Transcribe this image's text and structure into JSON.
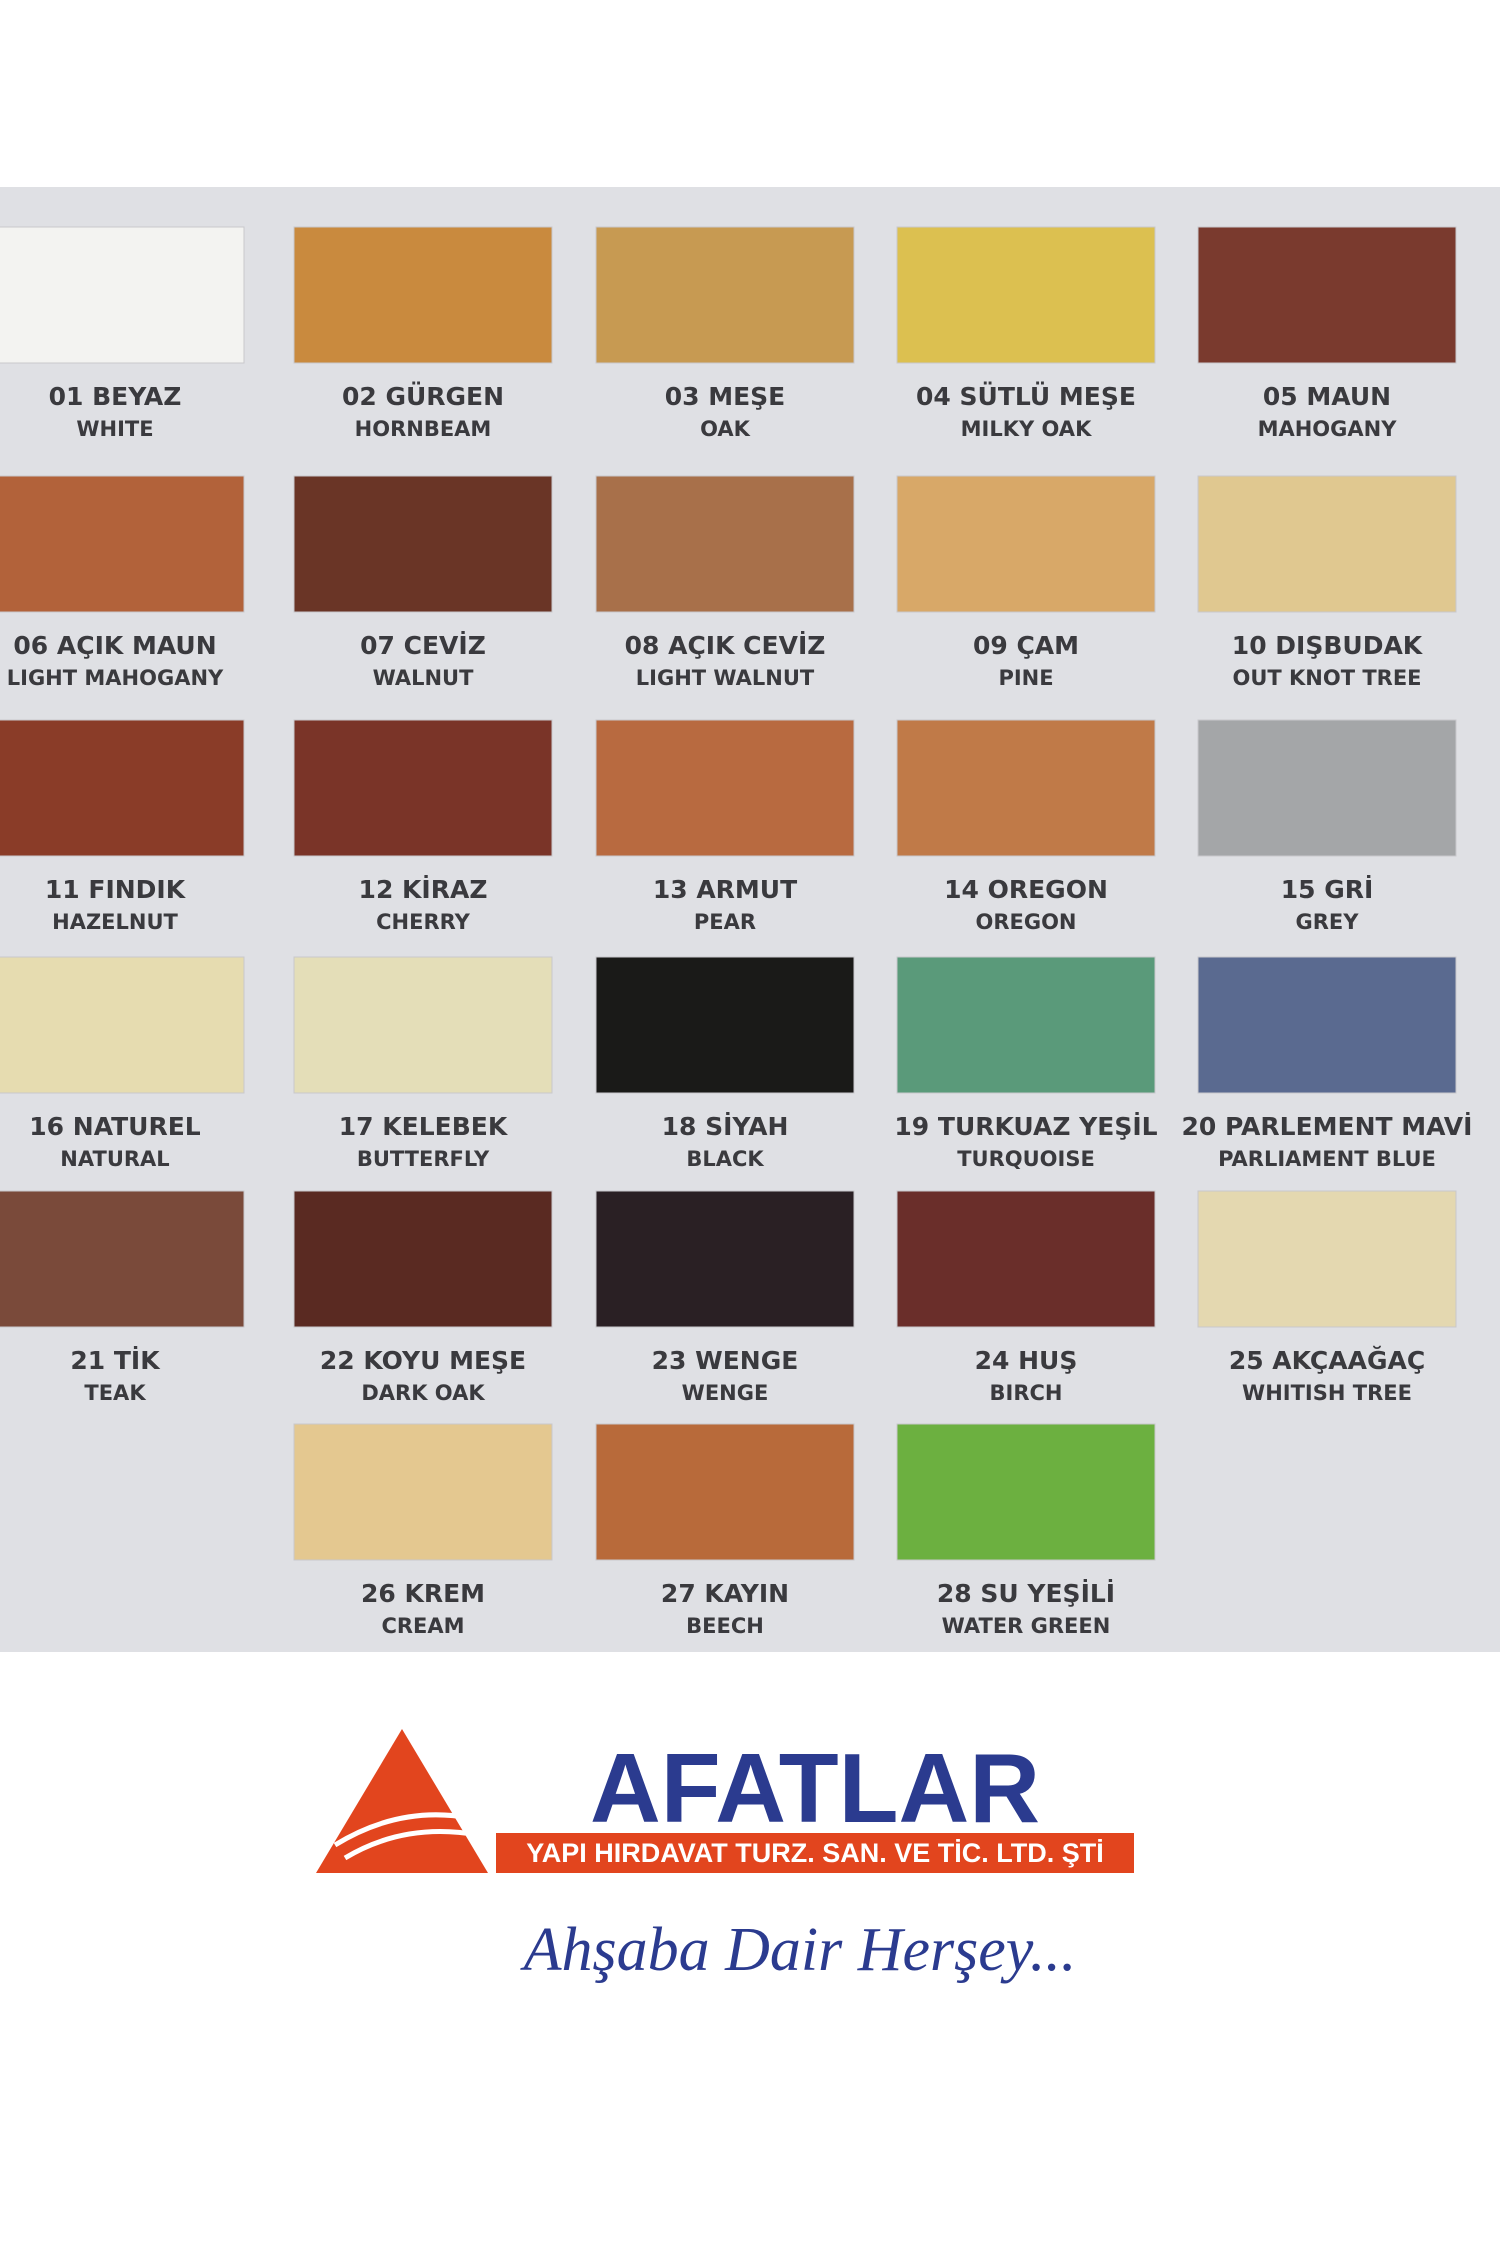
{
  "swatches": [
    {
      "label": "01 BEYAZ",
      "english": "WHITE",
      "color": "#f3f3f1"
    },
    {
      "label": "02 GÜRGEN",
      "english": "HORNBEAM",
      "color": "#c98a3e"
    },
    {
      "label": "03 MEŞE",
      "english": "OAK",
      "color": "#c79a52"
    },
    {
      "label": "04 SÜTLÜ MEŞE",
      "english": "MILKY OAK",
      "color": "#dcc050"
    },
    {
      "label": "05 MAUN",
      "english": "MAHOGANY",
      "color": "#7a3a2e"
    },
    {
      "label": "06 AÇIK MAUN",
      "english": "LIGHT MAHOGANY",
      "color": "#b2623a"
    },
    {
      "label": "07 CEVİZ",
      "english": "WALNUT",
      "color": "#6a3526"
    },
    {
      "label": "08 AÇIK CEVİZ",
      "english": "LIGHT WALNUT",
      "color": "#a8704a"
    },
    {
      "label": "09 ÇAM",
      "english": "PINE",
      "color": "#d8a868"
    },
    {
      "label": "10 DIŞBUDAK",
      "english": "OUT KNOT TREE",
      "color": "#e0c890"
    },
    {
      "label": "11 FINDIK",
      "english": "HAZELNUT",
      "color": "#8a3c28"
    },
    {
      "label": "12 KİRAZ",
      "english": "CHERRY",
      "color": "#7a3428"
    },
    {
      "label": "13 ARMUT",
      "english": "PEAR",
      "color": "#b86a40"
    },
    {
      "label": "14 OREGON",
      "english": "OREGON",
      "color": "#c07a48"
    },
    {
      "label": "15 GRİ",
      "english": "GREY",
      "color": "#a4a6a8"
    },
    {
      "label": "16 NATUREL",
      "english": "NATURAL",
      "color": "#e6dcb0"
    },
    {
      "label": "17 KELEBEK",
      "english": "BUTTERFLY",
      "color": "#e4deb8"
    },
    {
      "label": "18 SİYAH",
      "english": "BLACK",
      "color": "#1a1a18"
    },
    {
      "label": "19 TURKUAZ YEŞİL",
      "english": "TURQUOISE",
      "color": "#5a9a7a"
    },
    {
      "label": "20 PARLEMENT MAVİ",
      "english": "PARLIAMENT BLUE",
      "color": "#5a6a90"
    },
    {
      "label": "21 TİK",
      "english": "TEAK",
      "color": "#7a4a3a"
    },
    {
      "label": "22 KOYU MEŞE",
      "english": "DARK OAK",
      "color": "#5a2a22"
    },
    {
      "label": "23 WENGE",
      "english": "WENGE",
      "color": "#2a2024"
    },
    {
      "label": "24 HUŞ",
      "english": "BIRCH",
      "color": "#6a2e2a"
    },
    {
      "label": "25 AKÇAAĞAÇ",
      "english": "WHITISH TREE",
      "color": "#e4d8b0"
    },
    {
      "label": "26 KREM",
      "english": "CREAM",
      "color": "#e4c890"
    },
    {
      "label": "27 KAYIN",
      "english": "BEECH",
      "color": "#b86a3a"
    },
    {
      "label": "28 SU YEŞİLİ",
      "english": "WATER GREEN",
      "color": "#6cb040"
    }
  ],
  "brand": {
    "name": "AFATLAR",
    "company": "YAPI HIRDAVAT TURZ. SAN. VE TİC. LTD. ŞTİ",
    "slogan": "Ahşaba Dair Herşey..."
  }
}
